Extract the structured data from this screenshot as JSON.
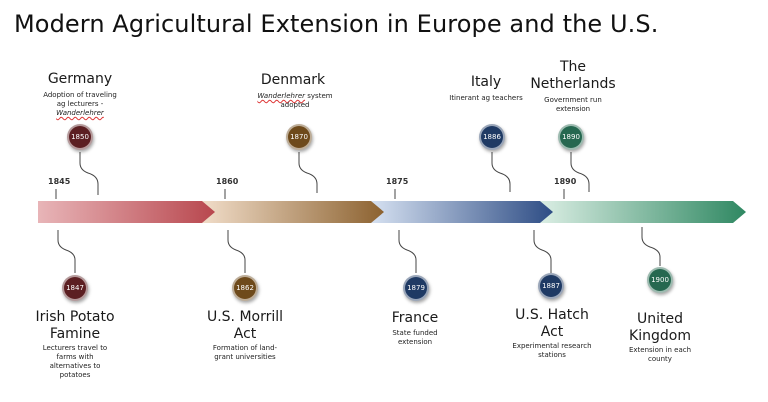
{
  "title": "Modern Agricultural Extension in Europe and the U.S.",
  "colors": {
    "segment1": [
      "#e8b5b8",
      "#b8474e"
    ],
    "segment2": [
      "#f1ddc9",
      "#8c6230"
    ],
    "segment3": [
      "#d6e1f1",
      "#2e4d85"
    ],
    "segment4": [
      "#dbeee4",
      "#2f8862"
    ]
  },
  "axis_years": [
    "1845",
    "1860",
    "1875",
    "1890"
  ],
  "events_top": [
    {
      "name": "Germany",
      "year": "1850",
      "desc_line1": "Adoption of traveling",
      "desc_line2": "ag lecturers -",
      "desc_italic": "Wanderlehrer",
      "color": "#5c1f22"
    },
    {
      "name": "Denmark",
      "year": "1870",
      "desc_italic": "Wanderlehrer",
      "desc_rest": " system",
      "desc_line2": "adopted",
      "color": "#6e4a1b"
    },
    {
      "name": "Italy",
      "year": "1886",
      "desc": "Itinerant ag teachers",
      "color": "#1f3a64"
    },
    {
      "name_line1": "The",
      "name_line2": "Netherlands",
      "year": "1890",
      "desc_line1": "Government run",
      "desc_line2": "extension",
      "color": "#266850"
    }
  ],
  "events_bottom": [
    {
      "name_line1": "Irish Potato",
      "name_line2": "Famine",
      "year": "1847",
      "desc_lines": [
        "Lecturers travel to",
        "farms with",
        "alternatives to",
        "potatoes"
      ],
      "color": "#5c1f22"
    },
    {
      "name_line1": "U.S. Morrill",
      "name_line2": "Act",
      "year": "1862",
      "desc_lines": [
        "Formation of land-",
        "grant universities"
      ],
      "color": "#6e4a1b"
    },
    {
      "name_line1": "France",
      "year": "1879",
      "desc_lines": [
        "State funded",
        "extension"
      ],
      "color": "#1f3a64"
    },
    {
      "name_line1": "U.S. Hatch",
      "name_line2": "Act",
      "year": "1887",
      "desc_lines": [
        "Experimental research",
        "stations"
      ],
      "color": "#1f3a64"
    },
    {
      "name_line1": "United",
      "name_line2": "Kingdom",
      "year": "1900",
      "desc_lines": [
        "Extension in each",
        "county"
      ],
      "color": "#266850"
    }
  ]
}
